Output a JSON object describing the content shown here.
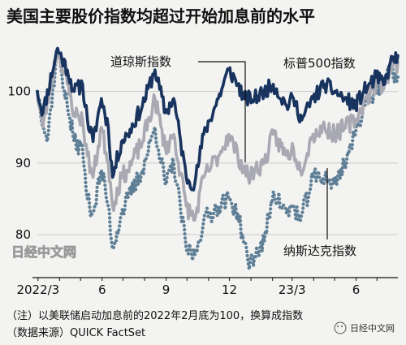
{
  "chart_data": {
    "type": "line",
    "title": "美国主要股价指数均超过开始加息前的水平",
    "yticks": [
      80,
      90,
      100
    ],
    "ylim": [
      74,
      108
    ],
    "xticks": [
      "2022/3",
      "6",
      "9",
      "12",
      "23/3",
      "6"
    ],
    "xdomain": [
      "2022-02-28",
      "2023-07-31"
    ],
    "series": [
      {
        "name": "道琼斯指数",
        "color": "#17335e",
        "style": "solid",
        "points": [
          [
            "2022-02-28",
            100
          ],
          [
            "2022-03-08",
            97
          ],
          [
            "2022-03-29",
            106
          ],
          [
            "2022-04-12",
            103
          ],
          [
            "2022-04-22",
            100
          ],
          [
            "2022-05-04",
            101
          ],
          [
            "2022-05-11",
            96
          ],
          [
            "2022-05-19",
            93
          ],
          [
            "2022-05-31",
            99
          ],
          [
            "2022-06-10",
            95
          ],
          [
            "2022-06-16",
            88
          ],
          [
            "2022-06-29",
            93
          ],
          [
            "2022-07-08",
            94
          ],
          [
            "2022-07-29",
            98
          ],
          [
            "2022-08-16",
            103
          ],
          [
            "2022-08-31",
            97
          ],
          [
            "2022-09-12",
            99
          ],
          [
            "2022-09-30",
            88
          ],
          [
            "2022-10-12",
            87
          ],
          [
            "2022-10-25",
            94
          ],
          [
            "2022-11-15",
            99
          ],
          [
            "2022-11-30",
            103
          ],
          [
            "2022-12-13",
            101
          ],
          [
            "2022-12-22",
            99
          ],
          [
            "2023-01-06",
            99
          ],
          [
            "2023-01-20",
            100
          ],
          [
            "2023-02-02",
            101
          ],
          [
            "2023-02-21",
            98
          ],
          [
            "2023-03-03",
            99
          ],
          [
            "2023-03-15",
            96
          ],
          [
            "2023-03-31",
            99
          ],
          [
            "2023-04-17",
            101
          ],
          [
            "2023-05-01",
            100
          ],
          [
            "2023-05-15",
            99
          ],
          [
            "2023-05-31",
            98
          ],
          [
            "2023-06-12",
            100
          ],
          [
            "2023-06-30",
            102
          ],
          [
            "2023-07-12",
            101
          ],
          [
            "2023-07-20",
            104
          ],
          [
            "2023-07-31",
            105
          ]
        ]
      },
      {
        "name": "标普500指数",
        "color": "#a9a9b3",
        "style": "solid",
        "points": [
          [
            "2022-02-28",
            100
          ],
          [
            "2022-03-08",
            95
          ],
          [
            "2022-03-29",
            106
          ],
          [
            "2022-04-12",
            101
          ],
          [
            "2022-04-22",
            97
          ],
          [
            "2022-05-04",
            96
          ],
          [
            "2022-05-11",
            91
          ],
          [
            "2022-05-19",
            88
          ],
          [
            "2022-05-31",
            95
          ],
          [
            "2022-06-10",
            90
          ],
          [
            "2022-06-16",
            84
          ],
          [
            "2022-06-29",
            88
          ],
          [
            "2022-07-08",
            89
          ],
          [
            "2022-07-29",
            93
          ],
          [
            "2022-08-16",
            99
          ],
          [
            "2022-08-31",
            92
          ],
          [
            "2022-09-12",
            94
          ],
          [
            "2022-09-30",
            84
          ],
          [
            "2022-10-12",
            82
          ],
          [
            "2022-10-25",
            88
          ],
          [
            "2022-11-15",
            91
          ],
          [
            "2022-11-30",
            94
          ],
          [
            "2022-12-13",
            91
          ],
          [
            "2022-12-28",
            88
          ],
          [
            "2023-01-06",
            89
          ],
          [
            "2023-01-20",
            90
          ],
          [
            "2023-02-02",
            94
          ],
          [
            "2023-02-21",
            91
          ],
          [
            "2023-03-03",
            92
          ],
          [
            "2023-03-13",
            89
          ],
          [
            "2023-03-31",
            94
          ],
          [
            "2023-04-17",
            95
          ],
          [
            "2023-05-01",
            94
          ],
          [
            "2023-05-15",
            95
          ],
          [
            "2023-05-31",
            96
          ],
          [
            "2023-06-15",
            99
          ],
          [
            "2023-06-30",
            101
          ],
          [
            "2023-07-12",
            101
          ],
          [
            "2023-07-20",
            103
          ],
          [
            "2023-07-31",
            104
          ]
        ]
      },
      {
        "name": "纳斯达克指数",
        "color": "#5f7f96",
        "style": "dotted",
        "points": [
          [
            "2022-02-28",
            100
          ],
          [
            "2022-03-14",
            93
          ],
          [
            "2022-03-29",
            106
          ],
          [
            "2022-04-12",
            98
          ],
          [
            "2022-04-22",
            93
          ],
          [
            "2022-05-04",
            92
          ],
          [
            "2022-05-11",
            85
          ],
          [
            "2022-05-19",
            83
          ],
          [
            "2022-05-31",
            89
          ],
          [
            "2022-06-10",
            84
          ],
          [
            "2022-06-16",
            78
          ],
          [
            "2022-06-29",
            83
          ],
          [
            "2022-07-08",
            85
          ],
          [
            "2022-07-29",
            89
          ],
          [
            "2022-08-16",
            95
          ],
          [
            "2022-08-31",
            87
          ],
          [
            "2022-09-12",
            90
          ],
          [
            "2022-09-30",
            78
          ],
          [
            "2022-10-12",
            77
          ],
          [
            "2022-10-25",
            82
          ],
          [
            "2022-11-15",
            84
          ],
          [
            "2022-11-30",
            85
          ],
          [
            "2022-12-13",
            83
          ],
          [
            "2022-12-28",
            76
          ],
          [
            "2023-01-06",
            77
          ],
          [
            "2023-01-20",
            79
          ],
          [
            "2023-02-02",
            86
          ],
          [
            "2023-02-21",
            83
          ],
          [
            "2023-03-03",
            84
          ],
          [
            "2023-03-13",
            82
          ],
          [
            "2023-03-31",
            88
          ],
          [
            "2023-04-17",
            88
          ],
          [
            "2023-05-01",
            87
          ],
          [
            "2023-05-15",
            90
          ],
          [
            "2023-05-31",
            94
          ],
          [
            "2023-06-15",
            99
          ],
          [
            "2023-06-30",
            100
          ],
          [
            "2023-07-12",
            101
          ],
          [
            "2023-07-20",
            103
          ],
          [
            "2023-07-31",
            102
          ]
        ]
      }
    ],
    "annotations": [
      "道琼斯指数",
      "标普500指数",
      "纳斯达克指数"
    ],
    "note_line1": "（注）以美联储启动加息前的2022年2月底为100，换算成指数",
    "note_line2": "（数据来源）QUICK FactSet"
  },
  "watermarks": {
    "left": "日经中文网",
    "right": "日经中文网"
  }
}
